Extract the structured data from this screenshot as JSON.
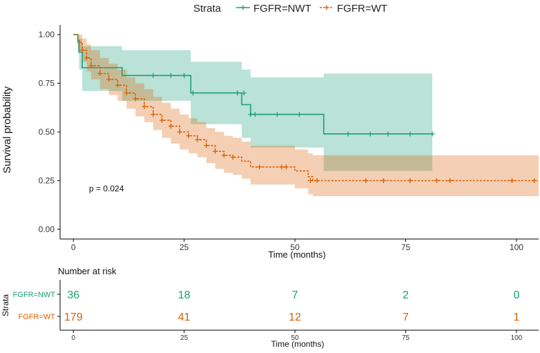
{
  "chart_data": {
    "type": "line",
    "legend": {
      "title": "Strata",
      "placement": "top",
      "entries": [
        "FGFR=NWT",
        "FGFR=WT"
      ]
    },
    "xlabel": "Time (months)",
    "ylabel": "Survival probability",
    "xlim": [
      -3,
      105
    ],
    "ylim": [
      -0.05,
      1.05
    ],
    "x_ticks": [
      0,
      25,
      50,
      75,
      100
    ],
    "y_ticks": [
      0.0,
      0.25,
      0.5,
      0.75,
      1.0
    ],
    "y_tick_labels": [
      "0.00",
      "0.25",
      "0.50",
      "0.75",
      "1.00"
    ],
    "grid": false,
    "annotation": "p = 0.024",
    "series": [
      {
        "name": "FGFR=NWT",
        "color": "#1b9e77",
        "line_style": "solid",
        "x": [
          0,
          1,
          1.3,
          2,
          11,
          26.5,
          38,
          40,
          56.5,
          81
        ],
        "y": [
          1.0,
          0.97,
          0.91,
          0.83,
          0.79,
          0.7,
          0.64,
          0.59,
          0.49,
          0.49
        ],
        "ci_upper": [
          1.0,
          1.0,
          0.98,
          0.94,
          0.92,
          0.86,
          0.82,
          0.78,
          0.8,
          0.8
        ],
        "ci_lower": [
          1.0,
          0.9,
          0.82,
          0.71,
          0.66,
          0.54,
          0.47,
          0.42,
          0.3,
          0.3
        ],
        "censor_x": [
          18,
          22,
          25,
          27,
          37,
          38.5,
          40,
          41,
          46,
          51,
          62,
          67,
          71,
          76,
          81
        ],
        "censor_y": [
          0.79,
          0.79,
          0.79,
          0.7,
          0.7,
          0.7,
          0.59,
          0.59,
          0.59,
          0.59,
          0.49,
          0.49,
          0.49,
          0.49,
          0.49
        ]
      },
      {
        "name": "FGFR=WT",
        "color": "#d95f02",
        "line_style": "dashed",
        "x": [
          0,
          1,
          2,
          3,
          4,
          6,
          8,
          10,
          12,
          14,
          16,
          18,
          20,
          22,
          24,
          26,
          28,
          30,
          32,
          34,
          36,
          38,
          40,
          44,
          49,
          50,
          53,
          54,
          105
        ],
        "y": [
          1.0,
          0.96,
          0.92,
          0.88,
          0.84,
          0.8,
          0.77,
          0.74,
          0.7,
          0.67,
          0.63,
          0.59,
          0.56,
          0.53,
          0.5,
          0.48,
          0.46,
          0.43,
          0.4,
          0.38,
          0.37,
          0.35,
          0.32,
          0.32,
          0.32,
          0.3,
          0.27,
          0.25,
          0.25
        ],
        "ci_upper": [
          1.0,
          1.0,
          0.98,
          0.95,
          0.92,
          0.88,
          0.85,
          0.82,
          0.78,
          0.75,
          0.72,
          0.68,
          0.65,
          0.62,
          0.59,
          0.57,
          0.55,
          0.52,
          0.5,
          0.48,
          0.47,
          0.45,
          0.43,
          0.43,
          0.43,
          0.41,
          0.39,
          0.38,
          0.38
        ],
        "ci_lower": [
          1.0,
          0.92,
          0.86,
          0.81,
          0.77,
          0.72,
          0.69,
          0.66,
          0.62,
          0.58,
          0.55,
          0.51,
          0.47,
          0.44,
          0.41,
          0.39,
          0.37,
          0.34,
          0.31,
          0.29,
          0.28,
          0.26,
          0.23,
          0.23,
          0.23,
          0.21,
          0.18,
          0.17,
          0.17
        ],
        "censor_x": [
          2,
          3,
          4,
          6,
          8,
          10,
          12,
          14,
          16,
          18,
          20,
          22,
          24,
          26,
          28,
          30,
          32,
          34,
          36,
          42,
          47,
          48,
          53.5,
          55,
          66,
          70,
          76,
          82,
          85,
          99,
          104
        ],
        "censor_y": [
          0.92,
          0.88,
          0.84,
          0.8,
          0.77,
          0.74,
          0.7,
          0.67,
          0.63,
          0.59,
          0.56,
          0.53,
          0.5,
          0.48,
          0.46,
          0.43,
          0.4,
          0.38,
          0.37,
          0.32,
          0.32,
          0.32,
          0.25,
          0.25,
          0.25,
          0.25,
          0.25,
          0.25,
          0.25,
          0.25,
          0.25
        ]
      }
    ],
    "risk_table": {
      "title": "Number at risk",
      "ylabel": "Strata",
      "xlabel": "Time (months)",
      "times": [
        0,
        25,
        50,
        75,
        100
      ],
      "rows": [
        {
          "name": "FGFR=NWT",
          "color": "#1b9e77",
          "counts": [
            "36",
            "18",
            "7",
            "2",
            "0"
          ]
        },
        {
          "name": "FGFR=WT",
          "color": "#d95f02",
          "counts": [
            "179",
            "41",
            "12",
            "7",
            "1"
          ]
        }
      ]
    }
  }
}
